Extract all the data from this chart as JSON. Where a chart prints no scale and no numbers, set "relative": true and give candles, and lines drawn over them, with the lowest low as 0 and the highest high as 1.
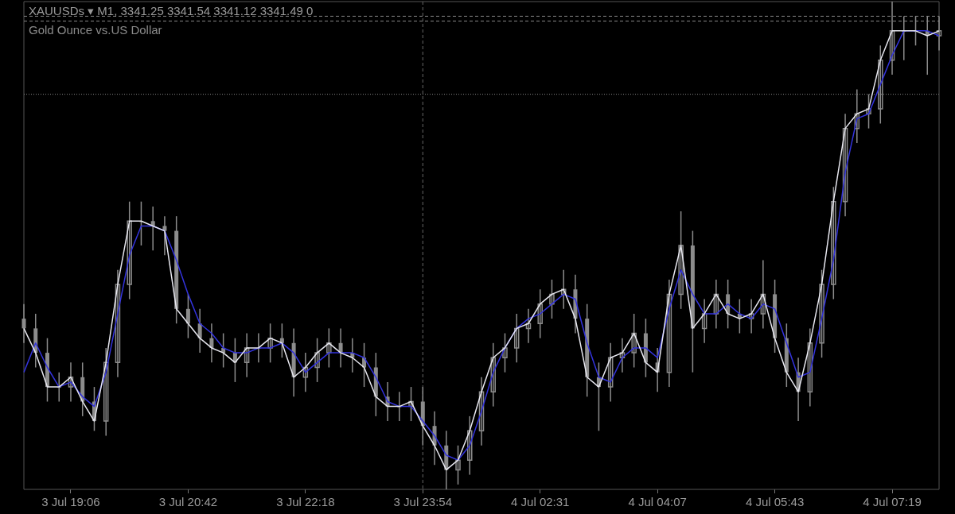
{
  "chart_data": {
    "type": "candlestick",
    "title": "XAUUSDs ▾ M1, 3341.25 3341.54 3341.12 3341.49 0",
    "subtitle": "Gold Ounce vs.US Dollar",
    "relative": true,
    "color": "#8c8c8c",
    "categories": [
      null,
      null,
      null,
      null,
      "3 Jul 19:06",
      null,
      null,
      null,
      null,
      null,
      null,
      null,
      null,
      null,
      "3 Jul 20:42",
      null,
      null,
      null,
      null,
      null,
      null,
      null,
      null,
      null,
      "3 Jul 22:18",
      null,
      null,
      null,
      null,
      null,
      null,
      null,
      null,
      null,
      "3 Jul 23:54",
      null,
      null,
      null,
      null,
      null,
      null,
      null,
      null,
      null,
      "4 Jul 02:31",
      null,
      null,
      null,
      null,
      null,
      null,
      null,
      null,
      null,
      "4 Jul 04:07",
      null,
      null,
      null,
      null,
      null,
      null,
      null,
      null,
      null,
      "4 Jul 05:43",
      null,
      null,
      null,
      null,
      null,
      null,
      null,
      null,
      null,
      "4 Jul 07:19",
      null,
      null,
      null,
      null
    ],
    "ohlc": [
      [
        0.35,
        0.38,
        0.3,
        0.33
      ],
      [
        0.33,
        0.36,
        0.25,
        0.28
      ],
      [
        0.28,
        0.31,
        0.18,
        0.21
      ],
      [
        0.21,
        0.24,
        0.18,
        0.21
      ],
      [
        0.21,
        0.26,
        0.18,
        0.23
      ],
      [
        0.23,
        0.26,
        0.15,
        0.18
      ],
      [
        0.18,
        0.21,
        0.12,
        0.14
      ],
      [
        0.14,
        0.29,
        0.11,
        0.26
      ],
      [
        0.26,
        0.45,
        0.23,
        0.42
      ],
      [
        0.42,
        0.59,
        0.39,
        0.55
      ],
      [
        0.55,
        0.59,
        0.5,
        0.55
      ],
      [
        0.55,
        0.58,
        0.49,
        0.54
      ],
      [
        0.54,
        0.56,
        0.48,
        0.53
      ],
      [
        0.53,
        0.56,
        0.34,
        0.37
      ],
      [
        0.37,
        0.4,
        0.31,
        0.34
      ],
      [
        0.34,
        0.37,
        0.28,
        0.31
      ],
      [
        0.31,
        0.34,
        0.26,
        0.29
      ],
      [
        0.29,
        0.32,
        0.25,
        0.28
      ],
      [
        0.28,
        0.31,
        0.22,
        0.26
      ],
      [
        0.26,
        0.32,
        0.23,
        0.29
      ],
      [
        0.29,
        0.32,
        0.26,
        0.29
      ],
      [
        0.29,
        0.34,
        0.26,
        0.31
      ],
      [
        0.31,
        0.34,
        0.27,
        0.3
      ],
      [
        0.3,
        0.33,
        0.19,
        0.23
      ],
      [
        0.23,
        0.28,
        0.2,
        0.25
      ],
      [
        0.25,
        0.31,
        0.22,
        0.28
      ],
      [
        0.28,
        0.33,
        0.25,
        0.3
      ],
      [
        0.3,
        0.33,
        0.25,
        0.28
      ],
      [
        0.28,
        0.31,
        0.24,
        0.27
      ],
      [
        0.27,
        0.3,
        0.21,
        0.25
      ],
      [
        0.25,
        0.28,
        0.15,
        0.19
      ],
      [
        0.19,
        0.22,
        0.14,
        0.17
      ],
      [
        0.17,
        0.2,
        0.14,
        0.17
      ],
      [
        0.17,
        0.21,
        0.14,
        0.18
      ],
      [
        0.18,
        0.21,
        0.09,
        0.13
      ],
      [
        0.13,
        0.16,
        0.05,
        0.09
      ],
      [
        0.09,
        0.12,
        0,
        0.04
      ],
      [
        0.04,
        0.09,
        0.01,
        0.06
      ],
      [
        0.06,
        0.15,
        0.03,
        0.12
      ],
      [
        0.12,
        0.23,
        0.09,
        0.2
      ],
      [
        0.2,
        0.3,
        0.17,
        0.27
      ],
      [
        0.27,
        0.32,
        0.24,
        0.29
      ],
      [
        0.29,
        0.36,
        0.26,
        0.33
      ],
      [
        0.33,
        0.37,
        0.3,
        0.34
      ],
      [
        0.34,
        0.41,
        0.31,
        0.38
      ],
      [
        0.38,
        0.43,
        0.35,
        0.4
      ],
      [
        0.4,
        0.45,
        0.37,
        0.41
      ],
      [
        0.41,
        0.44,
        0.32,
        0.35
      ],
      [
        0.35,
        0.38,
        0.19,
        0.23
      ],
      [
        0.23,
        0.26,
        0.12,
        0.21
      ],
      [
        0.21,
        0.3,
        0.18,
        0.27
      ],
      [
        0.27,
        0.31,
        0.24,
        0.28
      ],
      [
        0.28,
        0.36,
        0.25,
        0.32
      ],
      [
        0.32,
        0.35,
        0.23,
        0.26
      ],
      [
        0.26,
        0.29,
        0.2,
        0.24
      ],
      [
        0.24,
        0.43,
        0.21,
        0.4
      ],
      [
        0.4,
        0.57,
        0.37,
        0.5
      ],
      [
        0.5,
        0.53,
        0.24,
        0.33
      ],
      [
        0.33,
        0.39,
        0.3,
        0.36
      ],
      [
        0.36,
        0.43,
        0.33,
        0.4
      ],
      [
        0.4,
        0.43,
        0.33,
        0.36
      ],
      [
        0.36,
        0.39,
        0.32,
        0.35
      ],
      [
        0.35,
        0.39,
        0.32,
        0.36
      ],
      [
        0.36,
        0.47,
        0.33,
        0.4
      ],
      [
        0.4,
        0.43,
        0.28,
        0.31
      ],
      [
        0.31,
        0.34,
        0.21,
        0.24
      ],
      [
        0.24,
        0.27,
        0.14,
        0.2
      ],
      [
        0.2,
        0.33,
        0.17,
        0.3
      ],
      [
        0.3,
        0.45,
        0.27,
        0.42
      ],
      [
        0.42,
        0.62,
        0.39,
        0.59
      ],
      [
        0.59,
        0.77,
        0.56,
        0.74
      ],
      [
        0.74,
        0.82,
        0.71,
        0.77
      ],
      [
        0.77,
        0.81,
        0.74,
        0.78
      ],
      [
        0.78,
        0.91,
        0.75,
        0.88
      ],
      [
        0.88,
        1,
        0.85,
        0.94
      ],
      [
        0.94,
        0.97,
        0.88,
        0.94
      ],
      [
        0.94,
        0.97,
        0.91,
        0.94
      ],
      [
        0.94,
        0.97,
        0.85,
        0.93
      ],
      [
        0.93,
        0.97,
        0.9,
        0.94
      ]
    ],
    "series": [
      {
        "type": "line",
        "color": "#e8e8f0",
        "values": [
          0.33,
          0.28,
          0.21,
          0.21,
          0.23,
          0.18,
          0.14,
          0.26,
          0.42,
          0.55,
          0.55,
          0.54,
          0.53,
          0.37,
          0.34,
          0.31,
          0.29,
          0.28,
          0.26,
          0.29,
          0.29,
          0.31,
          0.3,
          0.23,
          0.25,
          0.28,
          0.3,
          0.28,
          0.27,
          0.25,
          0.19,
          0.17,
          0.17,
          0.18,
          0.13,
          0.09,
          0.04,
          0.06,
          0.12,
          0.2,
          0.27,
          0.29,
          0.33,
          0.34,
          0.38,
          0.4,
          0.41,
          0.35,
          0.23,
          0.21,
          0.27,
          0.28,
          0.32,
          0.26,
          0.24,
          0.4,
          0.5,
          0.33,
          0.36,
          0.4,
          0.36,
          0.35,
          0.36,
          0.4,
          0.31,
          0.24,
          0.2,
          0.3,
          0.42,
          0.59,
          0.74,
          0.77,
          0.78,
          0.88,
          0.94,
          0.94,
          0.94,
          0.93,
          0.94
        ]
      },
      {
        "type": "line",
        "color": "#3333dd",
        "values": [
          0.24,
          0.3,
          0.25,
          0.21,
          0.22,
          0.19,
          0.17,
          0.24,
          0.36,
          0.48,
          0.54,
          0.54,
          0.53,
          0.47,
          0.4,
          0.34,
          0.32,
          0.29,
          0.28,
          0.28,
          0.29,
          0.29,
          0.3,
          0.28,
          0.24,
          0.26,
          0.28,
          0.28,
          0.28,
          0.27,
          0.23,
          0.18,
          0.17,
          0.17,
          0.14,
          0.11,
          0.07,
          0.06,
          0.09,
          0.16,
          0.24,
          0.29,
          0.33,
          0.35,
          0.36,
          0.38,
          0.4,
          0.39,
          0.3,
          0.23,
          0.22,
          0.27,
          0.29,
          0.29,
          0.27,
          0.37,
          0.45,
          0.4,
          0.36,
          0.36,
          0.38,
          0.36,
          0.35,
          0.38,
          0.37,
          0.3,
          0.23,
          0.24,
          0.35,
          0.47,
          0.65,
          0.76,
          0.77,
          0.83,
          0.89,
          0.94,
          0.94,
          0.94,
          0.93
        ]
      }
    ],
    "ref_lines": [
      {
        "axis": "y",
        "value": 0.97,
        "color": "#888888",
        "line_style": "dashed"
      },
      {
        "axis": "y",
        "value": 0.96,
        "color": "#888888",
        "line_style": "dashed"
      },
      {
        "axis": "y",
        "value": 0.81,
        "color": "#888888",
        "line_style": "dotted"
      },
      {
        "axis": "x",
        "value": "3 Jul 23:54",
        "color": "#666666",
        "line_style": "dashed"
      }
    ]
  }
}
